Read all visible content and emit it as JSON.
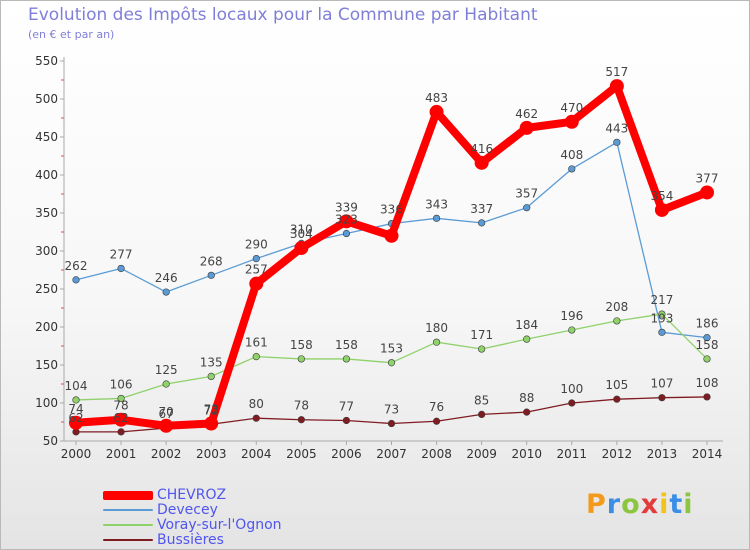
{
  "header": {
    "title": "Evolution des Impôts locaux pour la Commune par Habitant",
    "subtitle": "(en € et par an)"
  },
  "logo": {
    "text": "Proxiti",
    "colors": [
      "#f39a1b",
      "#3a8ee6",
      "#8cc63f",
      "#e23b3b",
      "#f3c21b",
      "#3a8ee6",
      "#8cc63f"
    ]
  },
  "chart_data": {
    "type": "line",
    "title": "Evolution des Impôts locaux pour la Commune par Habitant",
    "subtitle": "(en € et par an)",
    "xlabel": "",
    "ylabel": "",
    "categories": [
      "2000",
      "2001",
      "2002",
      "2003",
      "2004",
      "2005",
      "2006",
      "2007",
      "2008",
      "2009",
      "2010",
      "2011",
      "2012",
      "2013",
      "2014"
    ],
    "ylim": [
      50,
      550
    ],
    "yticks": [
      50,
      100,
      150,
      200,
      250,
      300,
      350,
      400,
      450,
      500,
      550
    ],
    "grid": false,
    "legend_position": "bottom-left",
    "series": [
      {
        "name": "CHEVROZ",
        "color": "#ff0000",
        "values": [
          74,
          78,
          70,
          73,
          257,
          304,
          339,
          320,
          483,
          416,
          462,
          470,
          517,
          354,
          377
        ],
        "labels": [
          "74",
          "78",
          "70",
          "73",
          "257",
          "304",
          "339",
          "",
          "483",
          "416",
          "462",
          "470",
          "517",
          "354",
          "377"
        ]
      },
      {
        "name": "Devecey",
        "color": "#5b9bd5",
        "values": [
          262,
          277,
          246,
          268,
          290,
          310,
          323,
          336,
          343,
          337,
          357,
          408,
          443,
          193,
          186
        ],
        "labels": [
          "262",
          "277",
          "246",
          "268",
          "290",
          "310",
          "323",
          "336",
          "343",
          "337",
          "357",
          "408",
          "443",
          "193",
          "186"
        ]
      },
      {
        "name": "Voray-sur-l'Ognon",
        "color": "#8fd16a",
        "values": [
          104,
          106,
          125,
          135,
          161,
          158,
          158,
          153,
          180,
          171,
          184,
          196,
          208,
          217,
          158
        ],
        "labels": [
          "104",
          "106",
          "125",
          "135",
          "161",
          "158",
          "158",
          "153",
          "180",
          "171",
          "184",
          "196",
          "208",
          "217",
          "158"
        ]
      },
      {
        "name": "Bussières",
        "color": "#7f1c22",
        "values": [
          62,
          62,
          67,
          72,
          80,
          78,
          77,
          73,
          76,
          85,
          88,
          100,
          105,
          107,
          108
        ],
        "labels": [
          "62",
          "62",
          "67",
          "72",
          "80",
          "78",
          "77",
          "73",
          "76",
          "85",
          "88",
          "100",
          "105",
          "107",
          "108"
        ]
      }
    ]
  }
}
